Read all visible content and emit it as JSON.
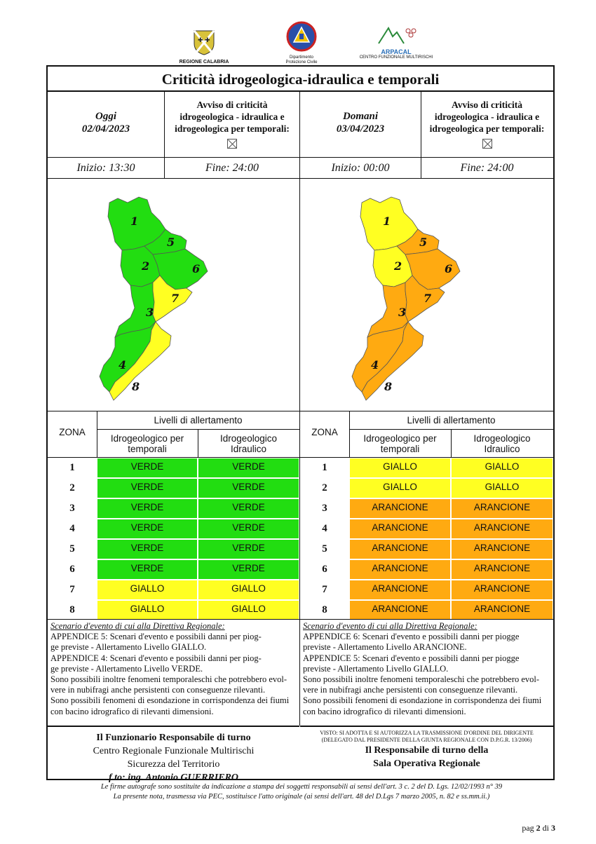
{
  "header": {
    "logo_left": "REGIONE CALABRIA",
    "logo_center_line1": "Dipartimento",
    "logo_center_line2": "Protezione Civile",
    "logo_right_name": "ARPACAL",
    "logo_right_sub": "CENTRO FUNZIONALE MULTIRISCHI"
  },
  "title": "Criticità idrogeologica-idraulica e temporali",
  "left": {
    "day_label": "Oggi",
    "date": "02/04/2023",
    "avviso": [
      "Avviso di criticità",
      "idrogeologica - idraulica e",
      "idrogeologica per temporali:"
    ],
    "start": "Inizio: 13:30",
    "end": "Fine: 24:00"
  },
  "right": {
    "day_label": "Domani",
    "date": "03/04/2023",
    "avviso": [
      "Avviso di criticità",
      "idrogeologica - idraulica e",
      "idrogeologica per temporali:"
    ],
    "start": "Inizio: 00:00",
    "end": "Fine: 24:00"
  },
  "table": {
    "zona_label": "ZONA",
    "livelli_label": "Livelli di allertamento",
    "col1": [
      "Idrogeologico per",
      "temporali"
    ],
    "col2": [
      "Idrogeologico",
      "Idraulico"
    ]
  },
  "colors": {
    "VERDE": "#22dd11",
    "GIALLO": "#ffff22",
    "ARANCIONE": "#ffaa11"
  },
  "levels_left": [
    {
      "zone": "1",
      "a": "VERDE",
      "b": "VERDE"
    },
    {
      "zone": "2",
      "a": "VERDE",
      "b": "VERDE"
    },
    {
      "zone": "3",
      "a": "VERDE",
      "b": "VERDE"
    },
    {
      "zone": "4",
      "a": "VERDE",
      "b": "VERDE"
    },
    {
      "zone": "5",
      "a": "VERDE",
      "b": "VERDE"
    },
    {
      "zone": "6",
      "a": "VERDE",
      "b": "VERDE"
    },
    {
      "zone": "7",
      "a": "GIALLO",
      "b": "GIALLO"
    },
    {
      "zone": "8",
      "a": "GIALLO",
      "b": "GIALLO"
    }
  ],
  "levels_right": [
    {
      "zone": "1",
      "a": "GIALLO",
      "b": "GIALLO"
    },
    {
      "zone": "2",
      "a": "GIALLO",
      "b": "GIALLO"
    },
    {
      "zone": "3",
      "a": "ARANCIONE",
      "b": "ARANCIONE"
    },
    {
      "zone": "4",
      "a": "ARANCIONE",
      "b": "ARANCIONE"
    },
    {
      "zone": "5",
      "a": "ARANCIONE",
      "b": "ARANCIONE"
    },
    {
      "zone": "6",
      "a": "ARANCIONE",
      "b": "ARANCIONE"
    },
    {
      "zone": "7",
      "a": "ARANCIONE",
      "b": "ARANCIONE"
    },
    {
      "zone": "8",
      "a": "ARANCIONE",
      "b": "ARANCIONE"
    }
  ],
  "scenario_left": {
    "heading": "Scenario d'evento di cui alla Direttiva Regionale:",
    "lines": [
      "APPENDICE 5: Scenari d'evento e possibili danni per piog-",
      "ge previste - Allertamento Livello GIALLO.",
      "APPENDICE 4: Scenari d'evento e possibili danni per piog-",
      "ge previste - Allertamento Livello VERDE.",
      "Sono possibili inoltre fenomeni temporaleschi che potrebbero evol-",
      "vere in nubifragi anche persistenti con conseguenze rilevanti.",
      "Sono possibili fenomeni di esondazione in corrispondenza dei fiumi",
      "con bacino idrografico di rilevanti dimensioni."
    ]
  },
  "scenario_right": {
    "heading": "Scenario d'evento di cui alla Direttiva Regionale:",
    "lines": [
      "APPENDICE 6: Scenari d'evento e possibili danni per piogge",
      "previste - Allertamento Livello ARANCIONE.",
      "APPENDICE 5: Scenari d'evento e possibili danni per piogge",
      "previste - Allertamento Livello GIALLO.",
      "Sono possibili inoltre fenomeni temporaleschi che potrebbero evol-",
      "vere in nubifragi anche persistenti con conseguenze rilevanti.",
      "Sono possibili fenomeni di esondazione in corrispondenza dei fiumi",
      "con bacino idrografico di rilevanti dimensioni."
    ]
  },
  "signature_left": {
    "line1": "Il Funzionario Responsabile di turno",
    "line2": "Centro Regionale Funzionale Multirischi",
    "line3": "Sicurezza del Territorio",
    "line4": "f.to:  ing. Antonio GUERRIERO"
  },
  "signature_right": {
    "small1": "VISTO: SI ADOTTA E SI AUTORIZZA LA TRASMISSIONE D'ORDINE DEL DIRIGENTE",
    "small2": "(DELEGATO DAL PRESIDENTE DELLA GIUNTA REGIONALE CON D.P.G.R. 13/2006)",
    "line1": "Il Responsabile di turno della",
    "line2": "Sala Operativa Regionale"
  },
  "footer": {
    "line1": "Le firme autografe sono sostituite da indicazione a stampa dei soggetti responsabili ai sensi dell'art. 3 c. 2 del D. Lgs. 12/02/1993 n° 39",
    "line2": "La presente nota, trasmessa via PEC, sostituisce l'atto originale (ai sensi dell'art. 48 del D.Lgs 7 marzo 2005, n. 82 e ss.mm.ii.)"
  },
  "page": {
    "prefix": "pag",
    "current": "2",
    "sep": "di",
    "total": "3"
  }
}
